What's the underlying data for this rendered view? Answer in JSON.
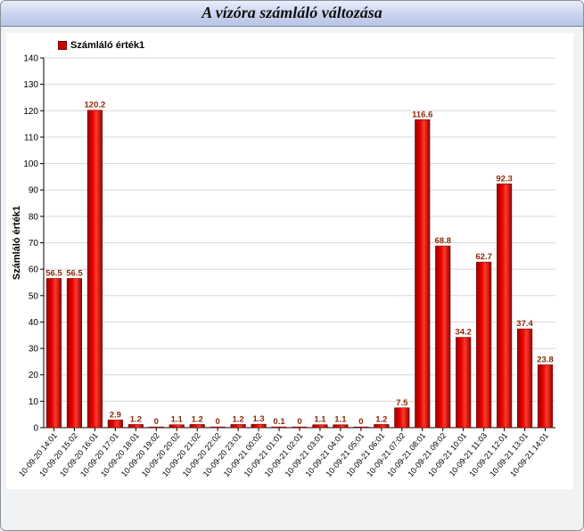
{
  "window": {
    "title": "A vízóra számláló változása"
  },
  "colors": {
    "bar": "#e50000",
    "bar_dark": "#9a0000",
    "value_label": "#8b2a0a",
    "grid": "#d8d8d8"
  },
  "chart_data": {
    "type": "bar",
    "title": "A vízóra számláló változása",
    "xlabel": "",
    "ylabel": "Számláló érték1",
    "ylim": [
      0,
      140
    ],
    "yticks": [
      0,
      10,
      20,
      30,
      40,
      50,
      60,
      70,
      80,
      90,
      100,
      110,
      120,
      130,
      140
    ],
    "grid": true,
    "legend": "top-left",
    "categories": [
      "10-09-20 14:01",
      "10-09-20 15:02",
      "10-09-20 16:01",
      "10-09-20 17:01",
      "10-09-20 18:01",
      "10-09-20 19:02",
      "10-09-20 20:02",
      "10-09-20 21:02",
      "10-09-20 22:02",
      "10-09-20 23:01",
      "10-09-21 00:02",
      "10-09-21 01:01",
      "10-09-21 02:01",
      "10-09-21 03:01",
      "10-09-21 04:01",
      "10-09-21 05:01",
      "10-09-21 06:01",
      "10-09-21 07:02",
      "10-09-21 08:01",
      "10-09-21 09:02",
      "10-09-21 10:01",
      "10-09-21 11:03",
      "10-09-21 12:01",
      "10-09-21 13:01",
      "10-09-21 14:01"
    ],
    "series": [
      {
        "name": "Számláló érték1",
        "values": [
          56.5,
          56.5,
          120.2,
          2.9,
          1.2,
          0,
          1.1,
          1.2,
          0,
          1.2,
          1.3,
          0.1,
          0,
          1.1,
          1.1,
          0,
          1.2,
          7.5,
          116.6,
          68.8,
          34.2,
          62.7,
          92.3,
          37.4,
          23.8
        ]
      }
    ]
  }
}
